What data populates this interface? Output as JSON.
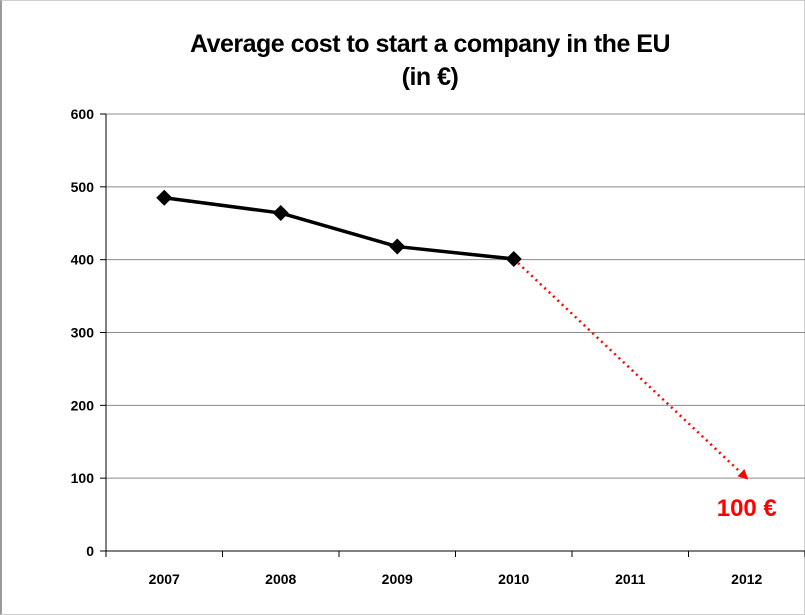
{
  "chart_data": {
    "type": "line",
    "title_line1": "Average cost to start a company in the EU",
    "title_line2": "(in €)",
    "categories": [
      "2007",
      "2008",
      "2009",
      "2010",
      "2011",
      "2012"
    ],
    "series": [
      {
        "values": [
          485,
          464,
          418,
          401,
          null,
          null
        ],
        "color": "#000000",
        "marker": "diamond"
      }
    ],
    "projection": {
      "from": [
        "2010",
        401
      ],
      "to": [
        "2012",
        100
      ],
      "color": "#ff0000",
      "style": "dotted-arrow"
    },
    "annotation": {
      "text": "100 €",
      "color": "#ff0000"
    },
    "yticks": [
      "0",
      "100",
      "200",
      "300",
      "400",
      "500",
      "600"
    ],
    "ylim": [
      0,
      600
    ],
    "grid": true
  }
}
